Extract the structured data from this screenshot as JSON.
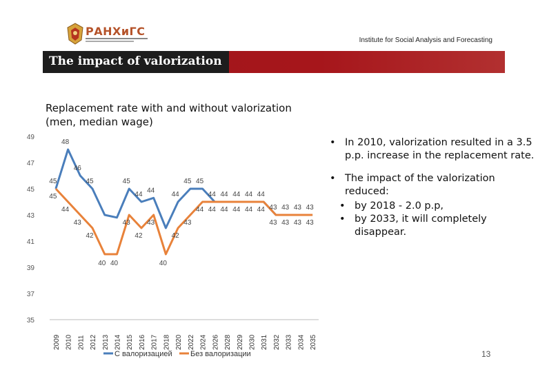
{
  "header": {
    "logo_text": "РАНХиГС",
    "institute": "Institute for Social Analysis and Forecasting"
  },
  "slide": {
    "title": "The impact of valorization",
    "chart_title_line1": "Replacement rate with and without valorization",
    "chart_title_line2": "(men, median wage)",
    "bullets": [
      "In 2010, valorization resulted in a 3.5 p.p. increase in the replacement rate.",
      "The impact of the valorization reduced:"
    ],
    "sub_bullets": [
      "by 2018 - 2.0 p.p,",
      "by 2033, it will completely disappear."
    ],
    "page_number": "13"
  },
  "colors": {
    "with_valorization": "#4a7ebb",
    "without_valorization": "#e8823a",
    "title_bar": "#a6161b"
  },
  "chart_data": {
    "type": "line",
    "x": [
      "2009",
      "2010",
      "2011",
      "2012",
      "2013",
      "2014",
      "2015",
      "2016",
      "2017",
      "2018",
      "2020",
      "2022",
      "2024",
      "2026",
      "2028",
      "2029",
      "2030",
      "2031",
      "2032",
      "2033",
      "2034",
      "2035"
    ],
    "ylim": [
      35,
      49
    ],
    "yticks": [
      35,
      37,
      39,
      41,
      43,
      45,
      47,
      49
    ],
    "grid": false,
    "legend_position": "bottom",
    "series": [
      {
        "name": "С валоризацией",
        "values": [
          45,
          48,
          46,
          45,
          43,
          42.8,
          45,
          44,
          44.3,
          42,
          44,
          45,
          45,
          44,
          44,
          44,
          44,
          44,
          43,
          43,
          43,
          43
        ],
        "labels": [
          "45",
          "48",
          "46",
          "45",
          "",
          "",
          "45",
          "44",
          "44",
          "",
          "44",
          "45",
          "45",
          "44",
          "44",
          "44",
          "44",
          "44",
          "43",
          "43",
          "43",
          "43"
        ]
      },
      {
        "name": "Без валоризации",
        "values": [
          45,
          44,
          43,
          42,
          40,
          40,
          43,
          42,
          43,
          40,
          42,
          43,
          44,
          44,
          44,
          44,
          44,
          44,
          43,
          43,
          43,
          43
        ],
        "labels": [
          "45",
          "44",
          "43",
          "42",
          "40",
          "40",
          "43",
          "42",
          "43",
          "40",
          "42",
          "43",
          "44",
          "44",
          "44",
          "44",
          "44",
          "44",
          "43",
          "43",
          "43",
          "43"
        ]
      }
    ],
    "extra_labels": [
      "43",
      "42",
      "44"
    ]
  }
}
